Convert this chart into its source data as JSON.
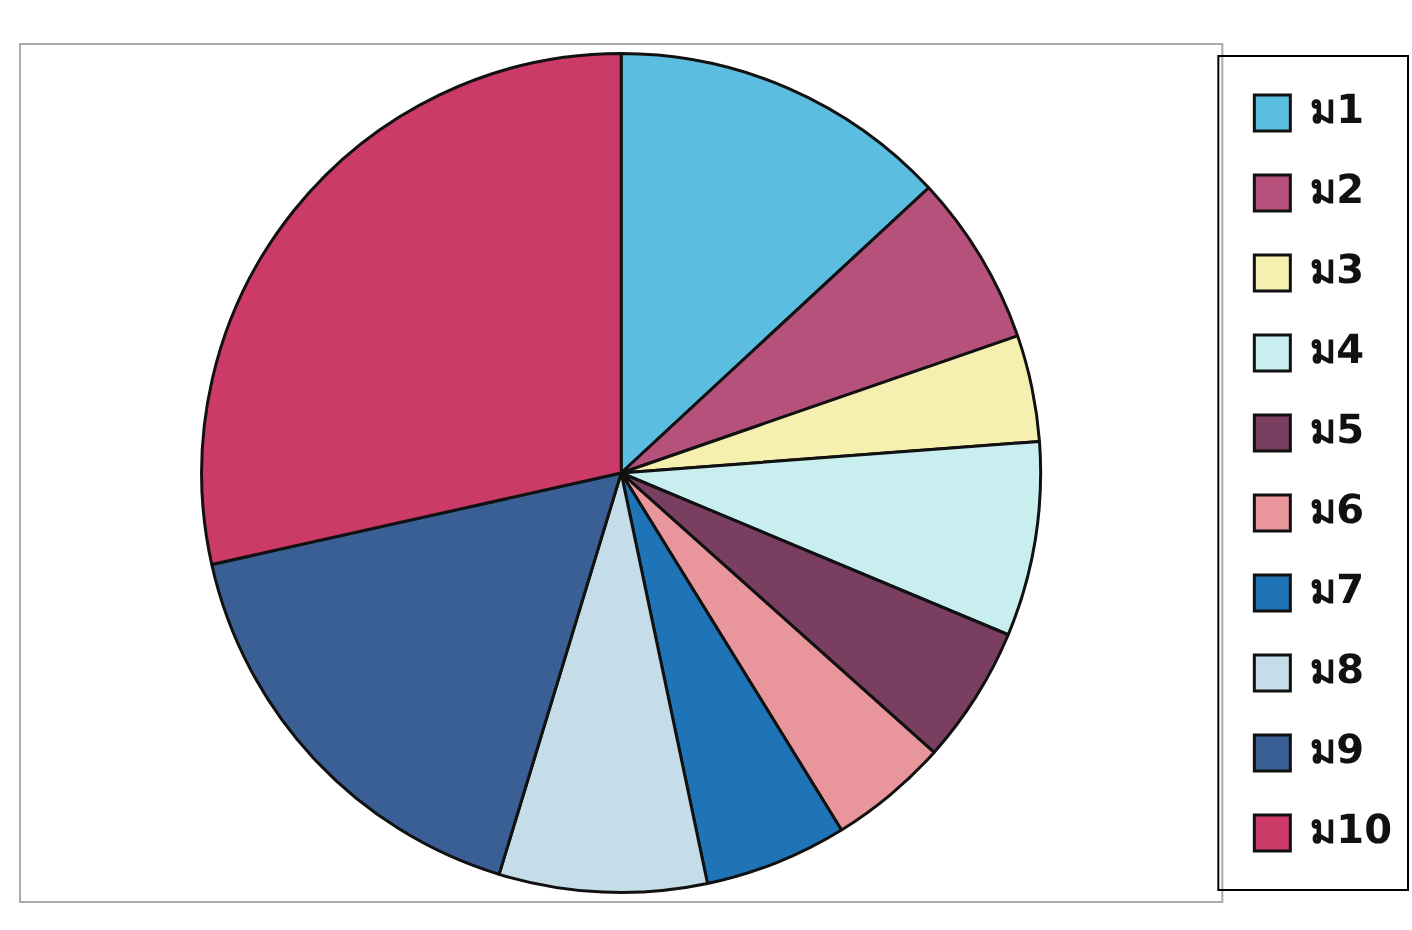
{
  "chart_data": {
    "type": "pie",
    "legend": "right",
    "categories": [
      "ม1",
      "ม2",
      "ม3",
      "ม4",
      "ม5",
      "ม6",
      "ม7",
      "ม8",
      "ม9",
      "ม10"
    ],
    "values": [
      13.1,
      6.6,
      4.1,
      7.5,
      5.3,
      4.6,
      5.5,
      8.0,
      16.8,
      28.5
    ],
    "colors": [
      "#5bbde0",
      "#b5517a",
      "#f5f0b0",
      "#c8eef0",
      "#7a3f60",
      "#e8959c",
      "#1f74b8",
      "#c5dde8",
      "#3a5f95",
      "#cc3a68"
    ]
  }
}
